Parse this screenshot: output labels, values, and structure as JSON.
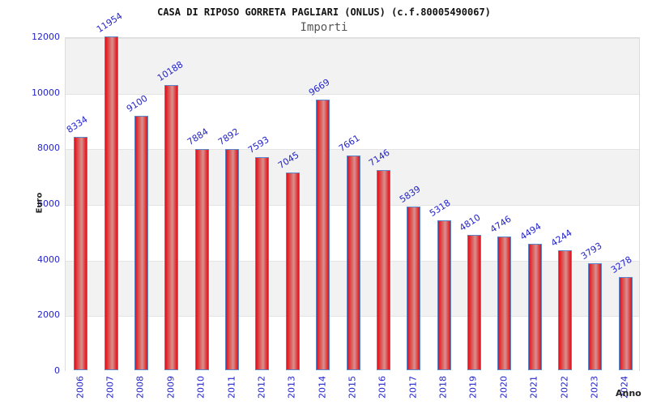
{
  "header": {
    "title": "CASA DI RIPOSO GORRETA PAGLIARI (ONLUS) (c.f.80005490067)",
    "subtitle": "Importi"
  },
  "chart_data": {
    "type": "bar",
    "title": "CASA DI RIPOSO GORRETA PAGLIARI (ONLUS) (c.f.80005490067)",
    "subtitle": "Importi",
    "xlabel": "Anno",
    "ylabel": "Euro",
    "categories": [
      "2006",
      "2007",
      "2008",
      "2009",
      "2010",
      "2011",
      "2012",
      "2013",
      "2014",
      "2015",
      "2016",
      "2017",
      "2018",
      "2019",
      "2020",
      "2021",
      "2022",
      "2023",
      "2024"
    ],
    "values": [
      8334,
      11954,
      9100,
      10188,
      7884,
      7892,
      7593,
      7045,
      9669,
      7661,
      7146,
      5839,
      5318,
      4810,
      4746,
      4494,
      4244,
      3793,
      3278
    ],
    "ylim": [
      0,
      12000
    ],
    "yticks": [
      0,
      2000,
      4000,
      6000,
      8000,
      10000,
      12000
    ],
    "grid": "alternating horizontal bands every 2000, gray/white",
    "legend_position": "none",
    "bar_labels_rotated": true,
    "colors": {
      "bar_edge_red": "#dc1022",
      "bar_center_light": "#d99090",
      "bar_border_blue": "#5b87c9",
      "axis_label_blue": "#2424cb",
      "band_gray": "#f2f2f2",
      "title_color": "#111111",
      "subtitle_color": "#555555"
    }
  }
}
